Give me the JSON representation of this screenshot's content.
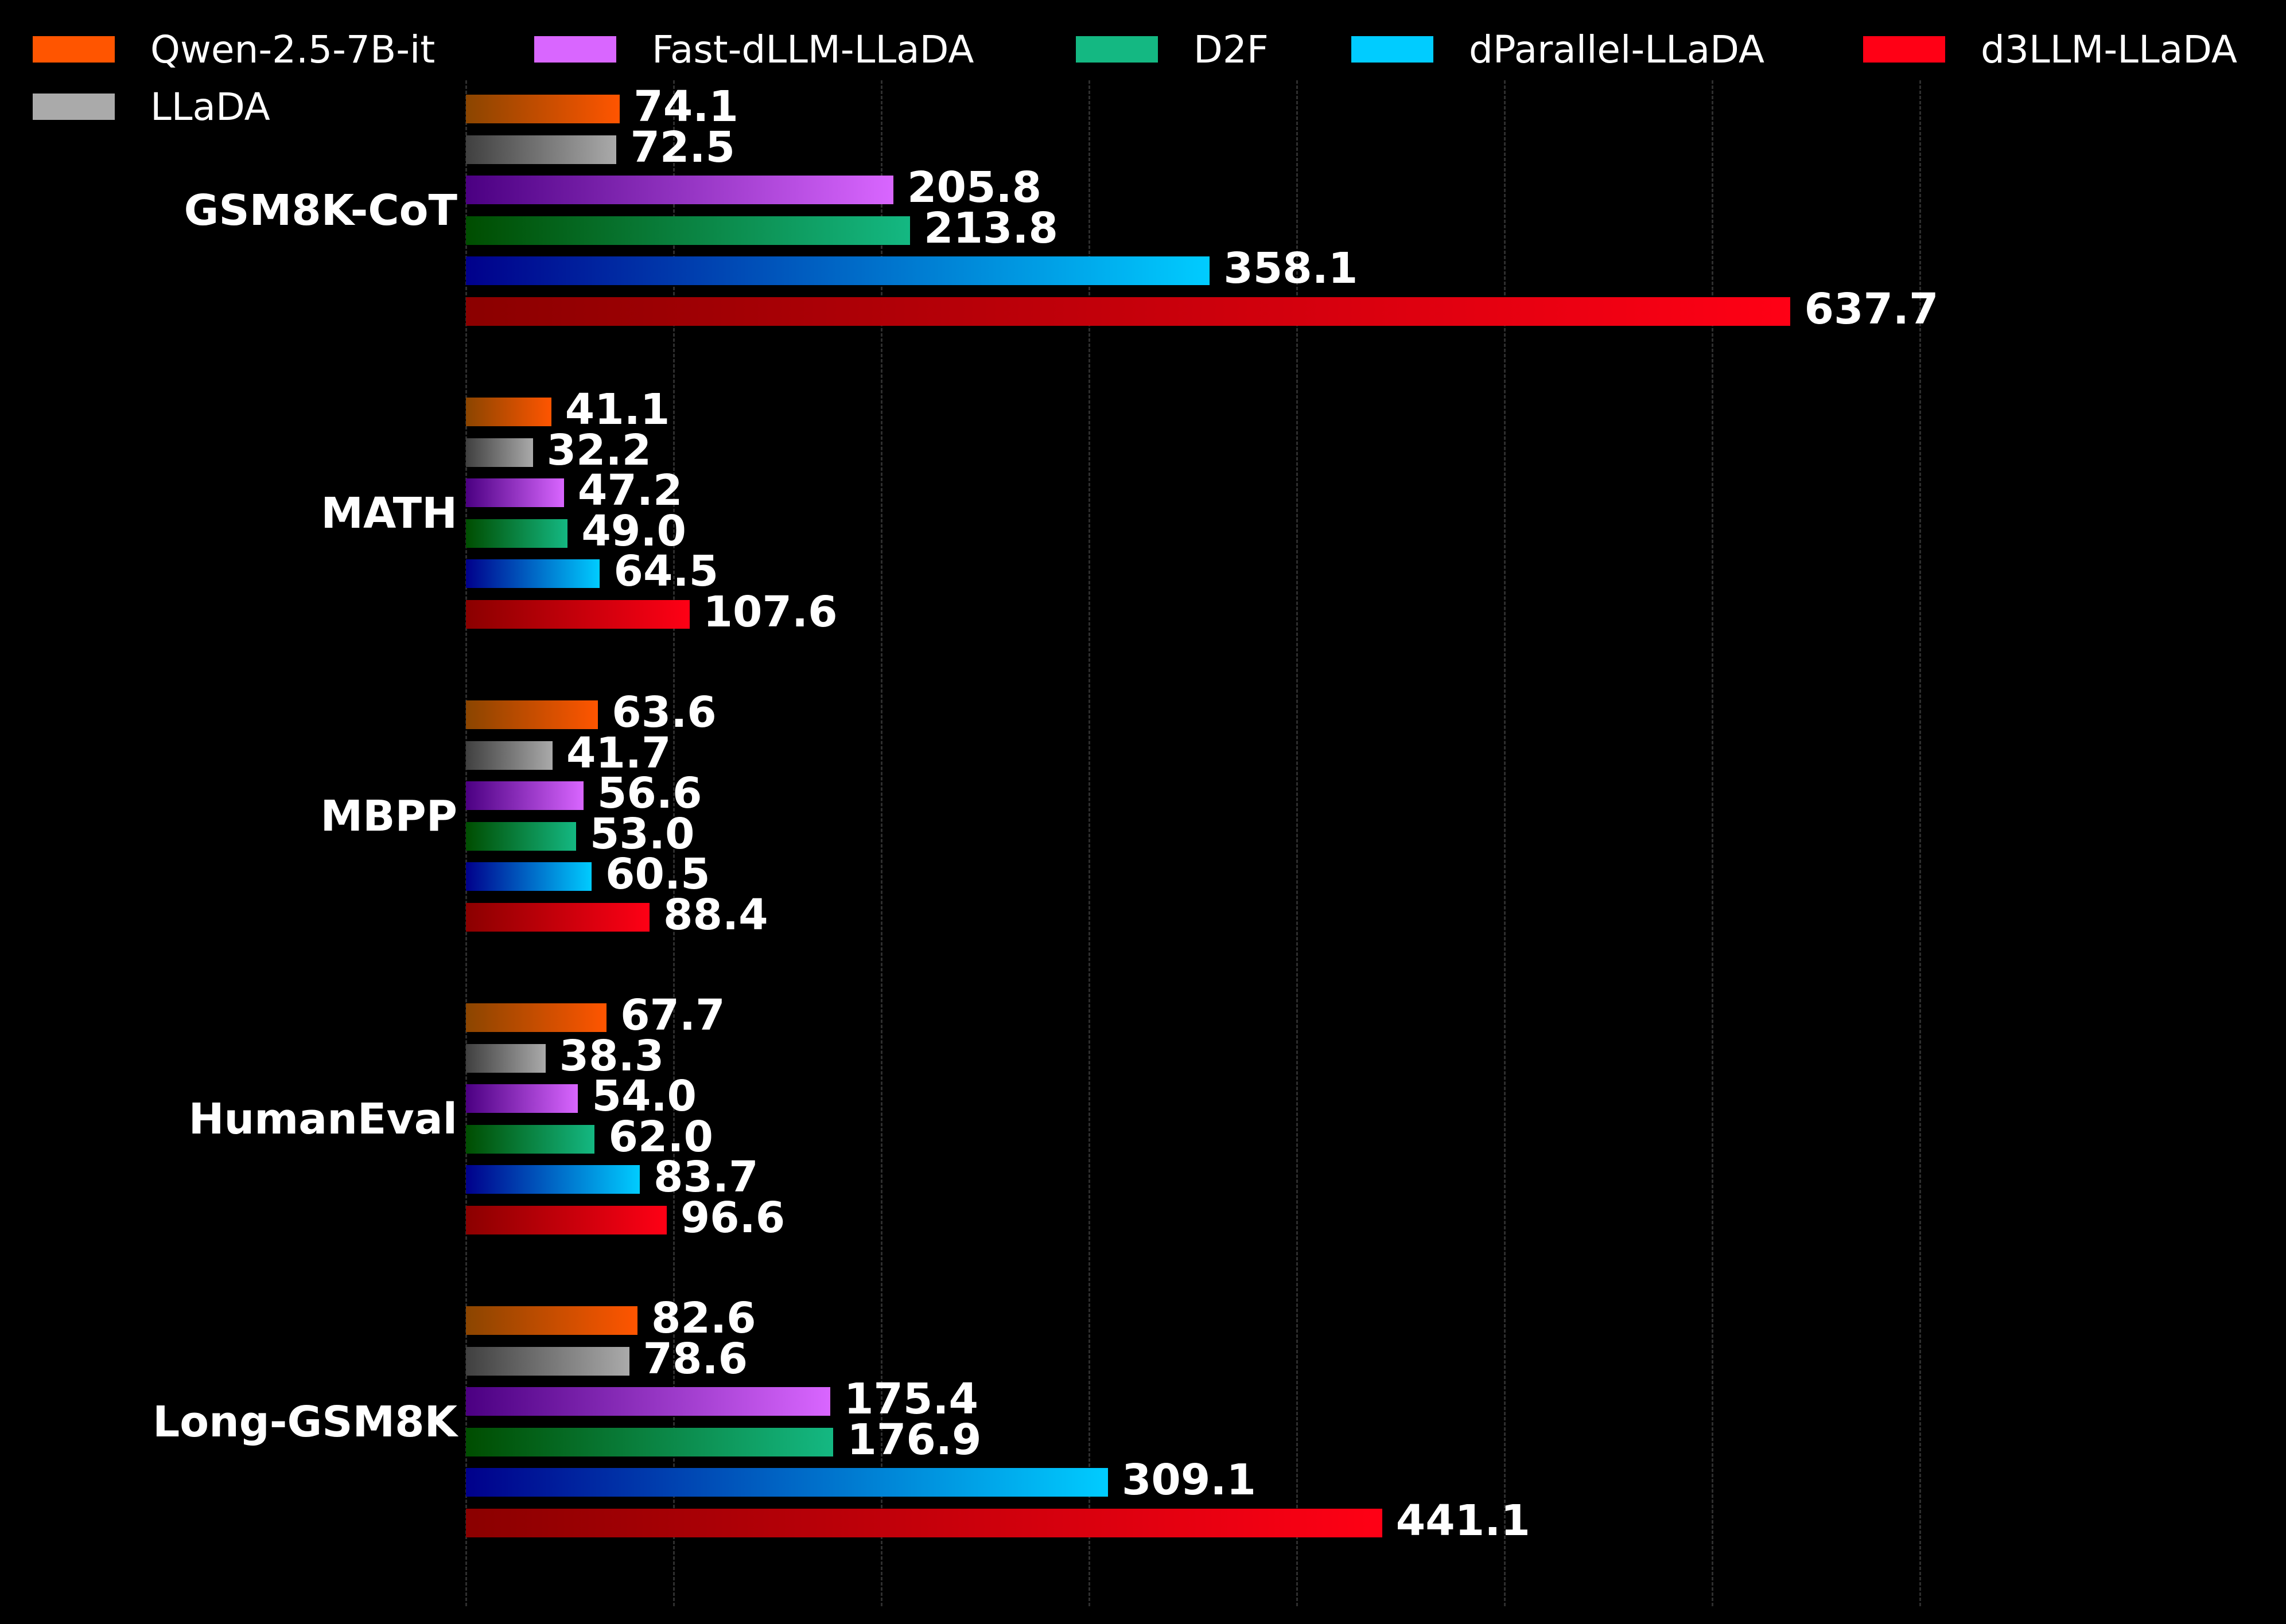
{
  "chart_data": {
    "type": "bar",
    "orientation": "horizontal",
    "title": "",
    "xlabel": "",
    "ylabel": "",
    "categories": [
      "GSM8K-CoT",
      "MATH",
      "MBPP",
      "HumanEval",
      "Long-GSM8K"
    ],
    "series": [
      {
        "name": "Qwen-2.5-7B-it",
        "color": "#FF5500",
        "gradient_start": "#8B4500",
        "values": [
          74.1,
          41.1,
          63.6,
          67.7,
          82.6
        ]
      },
      {
        "name": "LLaDA",
        "color": "#AAAAAA",
        "gradient_start": "#404040",
        "values": [
          72.5,
          32.2,
          41.7,
          38.3,
          78.6
        ]
      },
      {
        "name": "Fast-dLLM-LLaDA",
        "color": "#D966FF",
        "gradient_start": "#4B0082",
        "values": [
          205.8,
          47.2,
          56.6,
          54.0,
          175.4
        ]
      },
      {
        "name": "D2F",
        "color": "#14B882",
        "gradient_start": "#004D00",
        "values": [
          213.8,
          49.0,
          53.0,
          62.0,
          176.9
        ]
      },
      {
        "name": "dParallel-LLaDA",
        "color": "#00CCFF",
        "gradient_start": "#00008B",
        "values": [
          358.1,
          64.5,
          60.5,
          83.7,
          309.1
        ]
      },
      {
        "name": "d3LLM-LLaDA",
        "color": "#FF0015",
        "gradient_start": "#8B0000",
        "values": [
          637.7,
          107.6,
          88.4,
          96.6,
          441.1
        ]
      }
    ],
    "value_labels": [
      [
        "74.1",
        "72.5",
        "205.8",
        "213.8",
        "358.1",
        "637.7"
      ],
      [
        "41.1",
        "32.2",
        "47.2",
        "49.0",
        "64.5",
        "107.6"
      ],
      [
        "63.6",
        "41.7",
        "56.6",
        "53.0",
        "60.5",
        "88.4"
      ],
      [
        "67.7",
        "38.3",
        "54.0",
        "62.0",
        "83.7",
        "96.6"
      ],
      [
        "82.6",
        "78.6",
        "175.4",
        "176.9",
        "309.1",
        "441.1"
      ]
    ],
    "xlim": [
      0,
      750
    ],
    "grid": {
      "x": true,
      "style": "dashed",
      "interval": 100
    },
    "x_tick_labels_visible": false,
    "legend_position": "top",
    "background": "#000000"
  },
  "legend": {
    "items": [
      {
        "label": "Qwen-2.5-7B-it",
        "color": "#FF5500"
      },
      {
        "label": "Fast-dLLM-LLaDA",
        "color": "#D966FF"
      },
      {
        "label": "D2F",
        "color": "#14B882"
      },
      {
        "label": "dParallel-LLaDA",
        "color": "#00CCFF"
      },
      {
        "label": "d3LLM-LLaDA",
        "color": "#FF0015"
      },
      {
        "label": "LLaDA",
        "color": "#AAAAAA"
      }
    ]
  }
}
